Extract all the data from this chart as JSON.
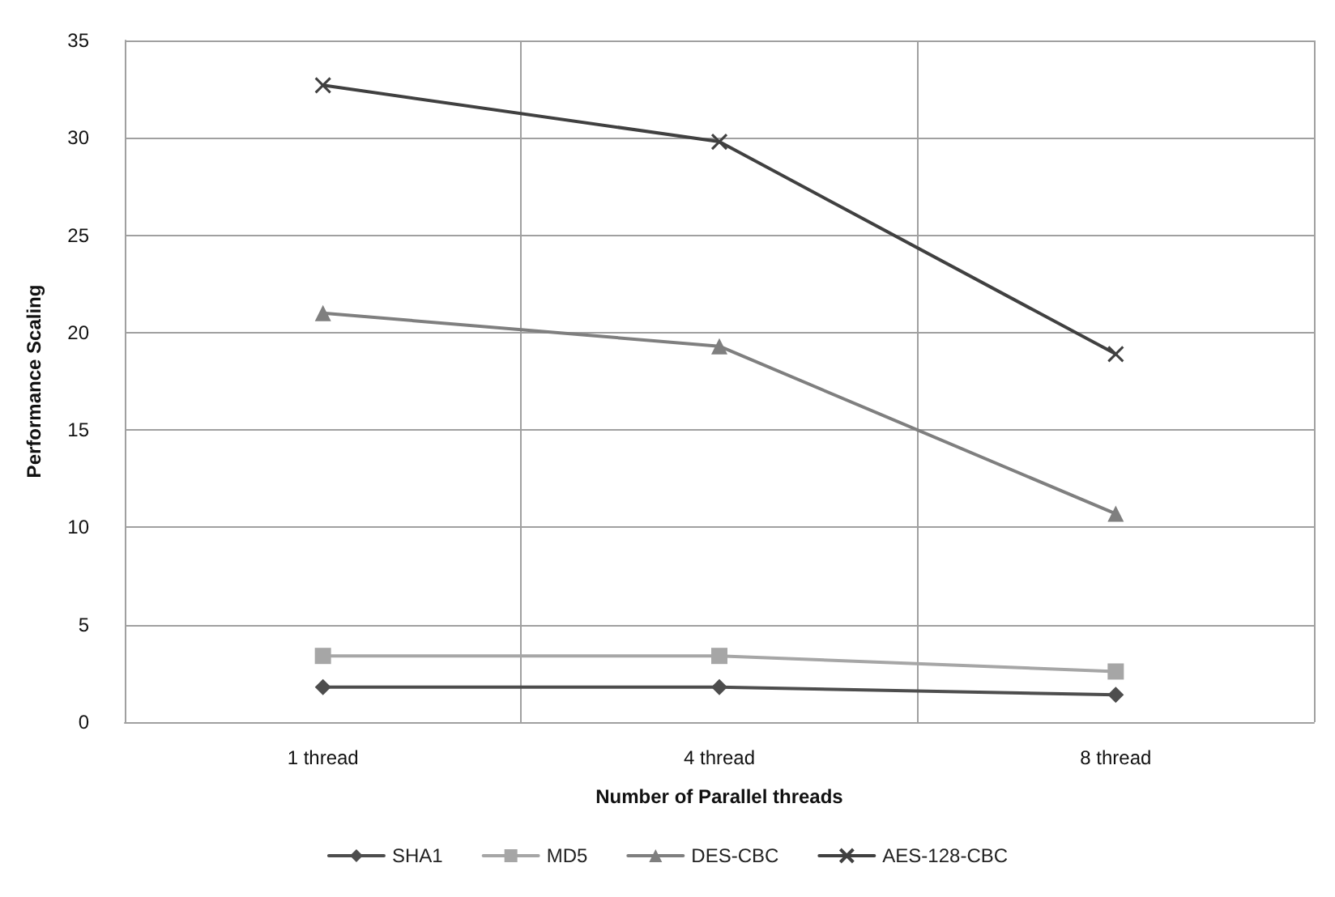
{
  "chart_data": {
    "type": "line",
    "xlabel": "Number of Parallel threads",
    "ylabel": "Performance Scaling",
    "categories": [
      "1 thread",
      "4 thread",
      "8 thread"
    ],
    "series": [
      {
        "name": "SHA1",
        "color": "#4d4d4d",
        "marker": "diamond",
        "values": [
          1.8,
          1.8,
          1.4
        ]
      },
      {
        "name": "MD5",
        "color": "#a6a6a6",
        "marker": "square",
        "values": [
          3.4,
          3.4,
          2.6
        ]
      },
      {
        "name": "DES-CBC",
        "color": "#7f7f7f",
        "marker": "triangle",
        "values": [
          21,
          19.3,
          10.7
        ]
      },
      {
        "name": "AES-128-CBC",
        "color": "#404040",
        "marker": "cross",
        "values": [
          32.7,
          29.8,
          18.9
        ]
      }
    ],
    "ylim": [
      0,
      35
    ],
    "yticks": [
      0,
      5,
      10,
      15,
      20,
      25,
      30,
      35
    ],
    "grid": true,
    "legend": "bottom"
  }
}
